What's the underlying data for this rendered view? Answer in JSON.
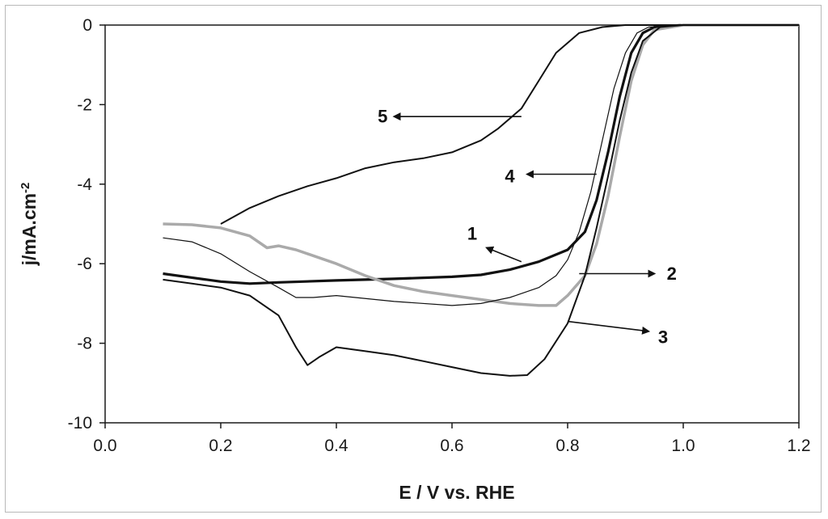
{
  "chart_data": {
    "type": "line",
    "xlabel": "E / V vs. RHE",
    "ylabel": "j/mA.cm",
    "ylabel_superscript": "-2",
    "xlim": [
      0.0,
      1.2
    ],
    "ylim": [
      -10,
      0
    ],
    "x_ticks": [
      "0.0",
      "0.2",
      "0.4",
      "0.6",
      "0.8",
      "1.0",
      "1.2"
    ],
    "y_ticks": [
      "0",
      "-2",
      "-4",
      "-6",
      "-8",
      "-10"
    ],
    "grid": false,
    "series": [
      {
        "name": "1",
        "color": "#111111",
        "points": [
          [
            0.1,
            -6.25
          ],
          [
            0.15,
            -6.35
          ],
          [
            0.2,
            -6.45
          ],
          [
            0.25,
            -6.5
          ],
          [
            0.3,
            -6.47
          ],
          [
            0.4,
            -6.42
          ],
          [
            0.5,
            -6.38
          ],
          [
            0.6,
            -6.33
          ],
          [
            0.65,
            -6.28
          ],
          [
            0.7,
            -6.15
          ],
          [
            0.75,
            -5.95
          ],
          [
            0.8,
            -5.65
          ],
          [
            0.83,
            -5.2
          ],
          [
            0.85,
            -4.4
          ],
          [
            0.87,
            -3.2
          ],
          [
            0.89,
            -1.8
          ],
          [
            0.91,
            -0.7
          ],
          [
            0.93,
            -0.2
          ],
          [
            0.95,
            -0.05
          ],
          [
            1.0,
            0.0
          ],
          [
            1.2,
            0.0
          ]
        ]
      },
      {
        "name": "2",
        "color": "#aaaaaa",
        "points": [
          [
            0.1,
            -5.0
          ],
          [
            0.15,
            -5.02
          ],
          [
            0.2,
            -5.1
          ],
          [
            0.25,
            -5.3
          ],
          [
            0.28,
            -5.6
          ],
          [
            0.3,
            -5.55
          ],
          [
            0.33,
            -5.65
          ],
          [
            0.4,
            -6.0
          ],
          [
            0.45,
            -6.3
          ],
          [
            0.5,
            -6.55
          ],
          [
            0.55,
            -6.7
          ],
          [
            0.6,
            -6.8
          ],
          [
            0.65,
            -6.9
          ],
          [
            0.7,
            -7.0
          ],
          [
            0.75,
            -7.05
          ],
          [
            0.78,
            -7.05
          ],
          [
            0.8,
            -6.8
          ],
          [
            0.83,
            -6.3
          ],
          [
            0.85,
            -5.5
          ],
          [
            0.87,
            -4.3
          ],
          [
            0.89,
            -2.8
          ],
          [
            0.91,
            -1.4
          ],
          [
            0.93,
            -0.5
          ],
          [
            0.95,
            -0.12
          ],
          [
            1.0,
            0.0
          ],
          [
            1.2,
            0.0
          ]
        ]
      },
      {
        "name": "3",
        "color": "#111111",
        "points": [
          [
            0.1,
            -6.4
          ],
          [
            0.15,
            -6.5
          ],
          [
            0.2,
            -6.6
          ],
          [
            0.25,
            -6.8
          ],
          [
            0.3,
            -7.3
          ],
          [
            0.33,
            -8.1
          ],
          [
            0.35,
            -8.55
          ],
          [
            0.37,
            -8.35
          ],
          [
            0.4,
            -8.1
          ],
          [
            0.45,
            -8.2
          ],
          [
            0.5,
            -8.3
          ],
          [
            0.55,
            -8.45
          ],
          [
            0.6,
            -8.6
          ],
          [
            0.65,
            -8.75
          ],
          [
            0.7,
            -8.82
          ],
          [
            0.73,
            -8.8
          ],
          [
            0.76,
            -8.4
          ],
          [
            0.8,
            -7.5
          ],
          [
            0.83,
            -6.3
          ],
          [
            0.85,
            -5.1
          ],
          [
            0.87,
            -3.8
          ],
          [
            0.89,
            -2.4
          ],
          [
            0.91,
            -1.2
          ],
          [
            0.93,
            -0.4
          ],
          [
            0.96,
            -0.05
          ],
          [
            1.0,
            0.0
          ],
          [
            1.2,
            0.0
          ]
        ]
      },
      {
        "name": "4",
        "color": "#111111",
        "points": [
          [
            0.1,
            -5.35
          ],
          [
            0.15,
            -5.45
          ],
          [
            0.2,
            -5.75
          ],
          [
            0.25,
            -6.2
          ],
          [
            0.3,
            -6.6
          ],
          [
            0.33,
            -6.85
          ],
          [
            0.36,
            -6.85
          ],
          [
            0.4,
            -6.8
          ],
          [
            0.5,
            -6.95
          ],
          [
            0.6,
            -7.05
          ],
          [
            0.65,
            -7.0
          ],
          [
            0.7,
            -6.85
          ],
          [
            0.75,
            -6.6
          ],
          [
            0.78,
            -6.3
          ],
          [
            0.8,
            -5.9
          ],
          [
            0.82,
            -5.2
          ],
          [
            0.84,
            -4.2
          ],
          [
            0.86,
            -2.9
          ],
          [
            0.88,
            -1.6
          ],
          [
            0.9,
            -0.7
          ],
          [
            0.92,
            -0.2
          ],
          [
            0.94,
            -0.05
          ],
          [
            1.0,
            0.0
          ],
          [
            1.2,
            0.0
          ]
        ]
      },
      {
        "name": "5",
        "color": "#111111",
        "points": [
          [
            0.2,
            -5.0
          ],
          [
            0.25,
            -4.6
          ],
          [
            0.3,
            -4.3
          ],
          [
            0.35,
            -4.05
          ],
          [
            0.4,
            -3.85
          ],
          [
            0.45,
            -3.6
          ],
          [
            0.5,
            -3.45
          ],
          [
            0.55,
            -3.35
          ],
          [
            0.6,
            -3.2
          ],
          [
            0.65,
            -2.9
          ],
          [
            0.68,
            -2.6
          ],
          [
            0.72,
            -2.1
          ],
          [
            0.75,
            -1.4
          ],
          [
            0.78,
            -0.7
          ],
          [
            0.82,
            -0.2
          ],
          [
            0.86,
            -0.05
          ],
          [
            0.9,
            0.0
          ],
          [
            1.2,
            0.0
          ]
        ]
      }
    ],
    "annotations": [
      {
        "text": "5",
        "arrow_from": [
          0.72,
          -2.3
        ],
        "arrow_to": [
          0.5,
          -2.3
        ],
        "label_at": [
          0.48,
          -2.45
        ]
      },
      {
        "text": "4",
        "arrow_from": [
          0.85,
          -3.75
        ],
        "arrow_to": [
          0.73,
          -3.75
        ],
        "label_at": [
          0.7,
          -3.95
        ]
      },
      {
        "text": "1",
        "arrow_from": [
          0.72,
          -5.95
        ],
        "arrow_to": [
          0.66,
          -5.6
        ],
        "label_at": [
          0.635,
          -5.4
        ]
      },
      {
        "text": "2",
        "arrow_from": [
          0.82,
          -6.25
        ],
        "arrow_to": [
          0.95,
          -6.25
        ],
        "label_at": [
          0.98,
          -6.4
        ]
      },
      {
        "text": "3",
        "arrow_from": [
          0.8,
          -7.45
        ],
        "arrow_to": [
          0.94,
          -7.7
        ],
        "label_at": [
          0.965,
          -8.0
        ]
      }
    ]
  }
}
